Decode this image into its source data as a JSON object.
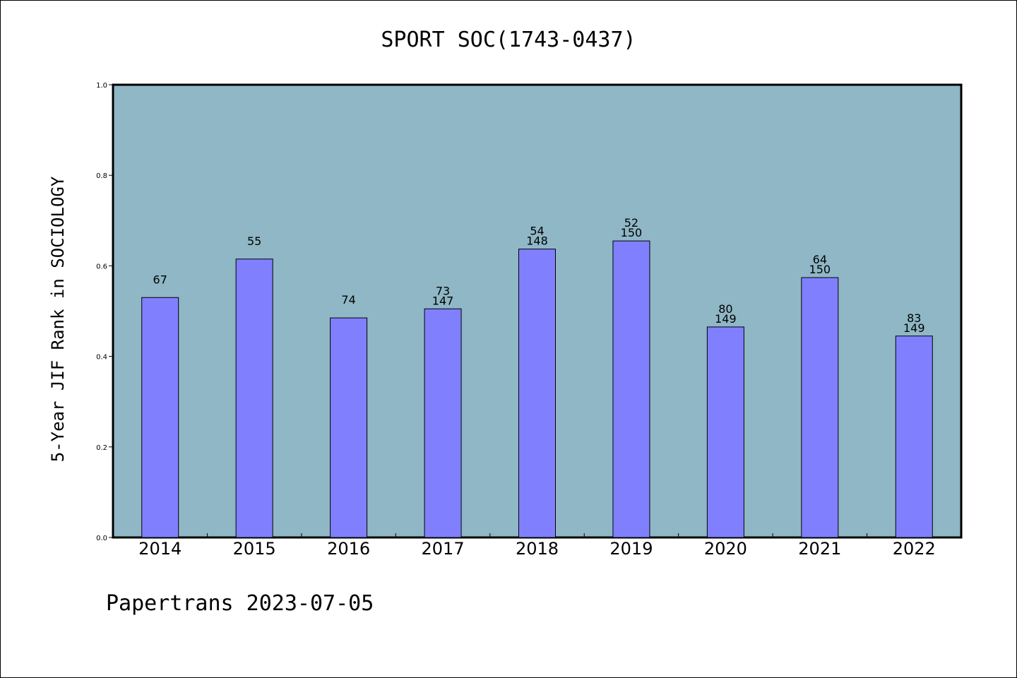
{
  "chart_data": {
    "type": "bar",
    "title": "SPORT SOC(1743-0437)",
    "ylabel": "5-Year JIF Rank in SOCIOLOGY",
    "xlabel": "",
    "ylim": [
      0.0,
      1.0
    ],
    "yticks": [
      "0.0",
      "0.2",
      "0.4",
      "0.6",
      "0.8",
      "1.0"
    ],
    "grid": false,
    "categories": [
      "2014",
      "2015",
      "2016",
      "2017",
      "2018",
      "2019",
      "2020",
      "2021",
      "2022"
    ],
    "values": [
      0.53,
      0.615,
      0.485,
      0.505,
      0.637,
      0.655,
      0.465,
      0.574,
      0.445
    ],
    "rank_labels": [
      "67",
      "55",
      "74",
      "73",
      "54",
      "52",
      "80",
      "64",
      "83"
    ],
    "total_labels": [
      "",
      "",
      "",
      "147",
      "148",
      "150",
      "149",
      "150",
      "149"
    ],
    "colors": {
      "plot_background": "#8fb7c6",
      "bar_fill": "#8080ff",
      "bar_stroke": "#000000"
    }
  },
  "footer": {
    "text": "Papertrans 2023-07-05"
  }
}
